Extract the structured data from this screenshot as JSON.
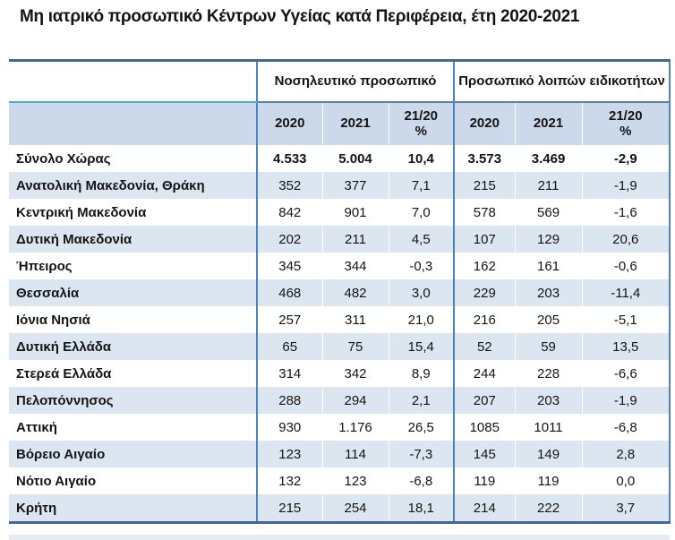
{
  "title": "Μη ιατρικό προσωπικό Κέντρων Υγείας κατά Περιφέρεια, έτη 2020-2021",
  "table": {
    "group_headers": {
      "nursing": "Νοσηλευτικό προσωπικό",
      "other": "Προσωπικό λοιπών ειδικοτήτων"
    },
    "sub_headers": {
      "y2020": "2020",
      "y2021": "2021",
      "ratio_top": "21/20",
      "ratio_bottom": "%"
    },
    "rows": [
      {
        "region": "Σύνολο Χώρας",
        "bold": true,
        "values": [
          "4.533",
          "5.004",
          "10,4",
          "3.573",
          "3.469",
          "-2,9"
        ]
      },
      {
        "region": "Ανατολική Μακεδονία, Θράκη",
        "bold": false,
        "values": [
          "352",
          "377",
          "7,1",
          "215",
          "211",
          "-1,9"
        ]
      },
      {
        "region": "Κεντρική Μακεδονία",
        "bold": false,
        "values": [
          "842",
          "901",
          "7,0",
          "578",
          "569",
          "-1,6"
        ]
      },
      {
        "region": "Δυτική Μακεδονία",
        "bold": false,
        "values": [
          "202",
          "211",
          "4,5",
          "107",
          "129",
          "20,6"
        ]
      },
      {
        "region": "Ήπειρος",
        "bold": false,
        "values": [
          "345",
          "344",
          "-0,3",
          "162",
          "161",
          "-0,6"
        ]
      },
      {
        "region": "Θεσσαλία",
        "bold": false,
        "values": [
          "468",
          "482",
          "3,0",
          "229",
          "203",
          "-11,4"
        ]
      },
      {
        "region": "Ιόνια Νησιά",
        "bold": false,
        "values": [
          "257",
          "311",
          "21,0",
          "216",
          "205",
          "-5,1"
        ]
      },
      {
        "region": "Δυτική Ελλάδα",
        "bold": false,
        "values": [
          "65",
          "75",
          "15,4",
          "52",
          "59",
          "13,5"
        ]
      },
      {
        "region": "Στερεά Ελλάδα",
        "bold": false,
        "values": [
          "314",
          "342",
          "8,9",
          "244",
          "228",
          "-6,6"
        ]
      },
      {
        "region": "Πελοπόννησος",
        "bold": false,
        "values": [
          "288",
          "294",
          "2,1",
          "207",
          "203",
          "-1,9"
        ]
      },
      {
        "region": "Αττική",
        "bold": false,
        "values": [
          "930",
          "1.176",
          "26,5",
          "1085",
          "1011",
          "-6,8"
        ]
      },
      {
        "region": "Βόρειο Αιγαίο",
        "bold": false,
        "values": [
          "123",
          "114",
          "-7,3",
          "145",
          "149",
          "2,8"
        ]
      },
      {
        "region": "Νότιο Αιγαίο",
        "bold": false,
        "values": [
          "132",
          "123",
          "-6,8",
          "119",
          "119",
          "0,0"
        ]
      },
      {
        "region": "Κρήτη",
        "bold": false,
        "values": [
          "215",
          "254",
          "18,1",
          "214",
          "222",
          "3,7"
        ]
      }
    ]
  },
  "colors": {
    "frame_border": "#44679a",
    "group_divider": "#4f81bd",
    "cyan_line": "#4bacc6",
    "subheader_bg": "#ccd9ea",
    "zebra_row_bg": "#dce6f1",
    "text": "#141414"
  }
}
